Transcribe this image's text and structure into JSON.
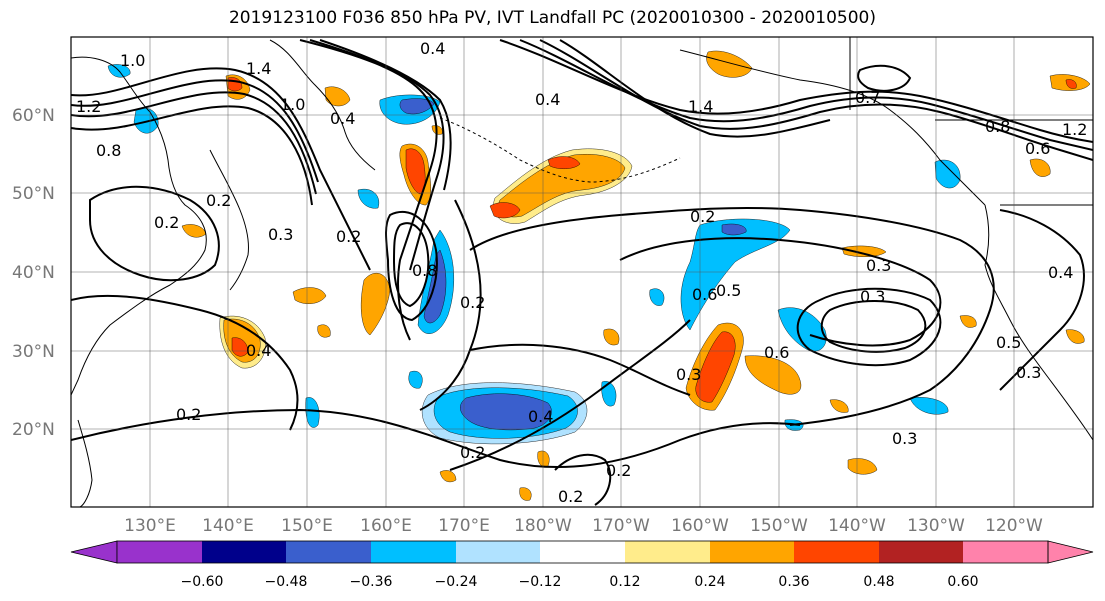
{
  "title": "2019123100 F036 850 hPa PV, IVT Landfall PC (2020010300 - 2020010500)",
  "lat_labels": [
    "60°N",
    "50°N",
    "40°N",
    "30°N",
    "20°N"
  ],
  "lon_labels": [
    "130°E",
    "140°E",
    "150°E",
    "160°E",
    "170°E",
    "180°W",
    "170°W",
    "160°W",
    "150°W",
    "140°W",
    "130°W",
    "120°W"
  ],
  "contour_labels": [
    "1.0",
    "1.4",
    "0.4",
    "1.0",
    "0.4",
    "1.4",
    "0.4",
    "0.7",
    "0.8",
    "1.2",
    "0.6",
    "1.2",
    "0.8",
    "0.2",
    "0.2",
    "0.3",
    "0.2",
    "0.8",
    "0.2",
    "0.2",
    "0.3",
    "0.6",
    "0.5",
    "0.6",
    "0.3",
    "0.4",
    "0.5",
    "0.3",
    "0.4",
    "0.2",
    "0.4",
    "0.2",
    "0.2",
    "0.2",
    "0.3",
    "0.3"
  ],
  "colorbar": {
    "tick_labels": [
      "−0.60",
      "−0.48",
      "−0.36",
      "−0.24",
      "−0.12",
      "0.12",
      "0.24",
      "0.36",
      "0.48",
      "0.60"
    ],
    "colors": [
      "#9932cc",
      "#00008b",
      "#3a5fcd",
      "#00bfff",
      "#b0e2ff",
      "#ffffff",
      "#ffec8b",
      "#ffa500",
      "#ff4500",
      "#b22222",
      "#ff82ab"
    ]
  },
  "shading_colors": {
    "neg_strong": "#3a5fcd",
    "neg_mid": "#00bfff",
    "neg_weak": "#b0e2ff",
    "pos_weak": "#ffec8b",
    "pos_mid": "#ffa500",
    "pos_strong": "#ff4500",
    "pos_extreme": "#b22222"
  }
}
